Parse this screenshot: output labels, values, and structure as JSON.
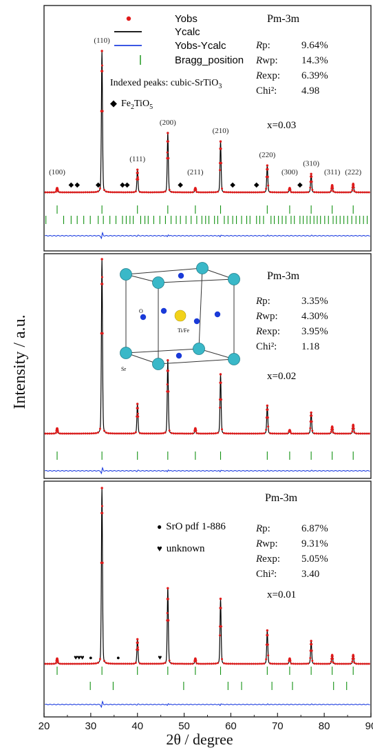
{
  "figure": {
    "ylabel": "Intensity / a.u.",
    "xlabel": "2θ / degree",
    "x_ticks": [
      "20",
      "30",
      "40",
      "50",
      "60",
      "70",
      "80",
      "90"
    ]
  },
  "chart_data": [
    {
      "type": "line",
      "panel": "top",
      "xlim": [
        20,
        90
      ],
      "x_ticks": [
        20,
        30,
        40,
        50,
        60,
        70,
        80,
        90
      ],
      "y_ticks_shown": false,
      "grid": false,
      "legend_position": "top-left",
      "series": [
        {
          "name": "Yobs",
          "style": "red dots",
          "color": "#e01a1a"
        },
        {
          "name": "Ycalc",
          "style": "black line",
          "color": "#000000"
        },
        {
          "name": "Yobs-Ycalc",
          "style": "blue line",
          "color": "#1f3fe0"
        },
        {
          "name": "Bragg_position",
          "style": "green ticks",
          "color": "#109010"
        }
      ],
      "peaks": [
        {
          "x": 22.8,
          "h": 0.03,
          "label": "(100)"
        },
        {
          "x": 32.4,
          "h": 1.0,
          "label": "(110)"
        },
        {
          "x": 40.0,
          "h": 0.16,
          "label": "(111)"
        },
        {
          "x": 46.5,
          "h": 0.42,
          "label": "(200)"
        },
        {
          "x": 52.4,
          "h": 0.03,
          "label": "(211)"
        },
        {
          "x": 57.8,
          "h": 0.36,
          "label": "(210)"
        },
        {
          "x": 67.8,
          "h": 0.19,
          "label": "(220)"
        },
        {
          "x": 72.6,
          "h": 0.03,
          "label": "(300)"
        },
        {
          "x": 77.2,
          "h": 0.13,
          "label": "(310)"
        },
        {
          "x": 81.7,
          "h": 0.05,
          "label": "(311)"
        },
        {
          "x": 86.2,
          "h": 0.06,
          "label": "(222)"
        }
      ],
      "impurity_markers": [
        25.8,
        27.1,
        31.6,
        36.8,
        37.8,
        49.2,
        60.4,
        65.5,
        74.8
      ],
      "impurity_symbol": "◆",
      "bragg_positions_row1": [
        22.8,
        32.4,
        40.0,
        46.5,
        52.4,
        57.8,
        67.8,
        72.6,
        77.2,
        81.7,
        86.2
      ],
      "bragg_positions_row2": [
        20.4,
        24.2,
        25.8,
        27.1,
        28.5,
        29.9,
        31.6,
        32.7,
        34.1,
        35.4,
        36.8,
        37.6,
        38.4,
        39.1,
        40.7,
        41.6,
        42.3,
        43.5,
        44.8,
        46.0,
        47.2,
        48.3,
        49.2,
        50.4,
        51.5,
        52.7,
        53.8,
        54.6,
        55.3,
        56.5,
        57.2,
        58.6,
        59.4,
        60.4,
        61.2,
        62.3,
        63.4,
        64.1,
        65.5,
        66.2,
        67.0,
        68.6,
        69.3,
        70.2,
        71.0,
        71.8,
        72.9,
        73.6,
        74.8,
        75.5,
        76.3,
        77.0,
        77.8,
        78.5,
        79.2,
        80.1,
        80.9,
        81.9,
        82.6,
        83.4,
        84.2,
        85.0,
        85.9,
        86.8,
        87.6,
        88.4,
        89.2
      ],
      "annotations": {
        "space_group": "Pm-3m",
        "indexed_note": "Indexed peaks: cubic-SrTiO",
        "indexed_note_sub": "3",
        "impurity_label": "Fe",
        "impurity_label_sub1": "2",
        "impurity_label_mid": "TiO",
        "impurity_label_sub2": "5",
        "composition": "x=0.03",
        "fit_stats": [
          {
            "name": "R",
            "suffix": "p:",
            "value": "9.64%"
          },
          {
            "name": "R",
            "suffix": "wp:",
            "value": "14.3%"
          },
          {
            "name": "R",
            "suffix": "exp:",
            "value": "6.39%"
          },
          {
            "name": "Chi",
            "suffix": "²:",
            "value": "4.98"
          }
        ]
      }
    },
    {
      "type": "line",
      "panel": "middle",
      "xlim": [
        20,
        90
      ],
      "grid": false,
      "peaks": [
        {
          "x": 22.8,
          "h": 0.03
        },
        {
          "x": 32.4,
          "h": 1.0
        },
        {
          "x": 40.0,
          "h": 0.17
        },
        {
          "x": 46.5,
          "h": 0.42
        },
        {
          "x": 52.4,
          "h": 0.03
        },
        {
          "x": 57.8,
          "h": 0.34
        },
        {
          "x": 67.8,
          "h": 0.16
        },
        {
          "x": 72.6,
          "h": 0.02
        },
        {
          "x": 77.2,
          "h": 0.12
        },
        {
          "x": 81.7,
          "h": 0.04
        },
        {
          "x": 86.2,
          "h": 0.05
        }
      ],
      "bragg_positions_row1": [
        22.8,
        32.4,
        40.0,
        46.5,
        52.4,
        57.8,
        67.8,
        72.6,
        77.2,
        81.7,
        86.2
      ],
      "inset": {
        "type": "crystal-structure",
        "labels": {
          "o": "O",
          "b_site": "Ti/Fe",
          "a_site": "Sr"
        }
      },
      "annotations": {
        "space_group": "Pm-3m",
        "composition": "x=0.02",
        "fit_stats": [
          {
            "name": "R",
            "suffix": "p:",
            "value": "3.35%"
          },
          {
            "name": "R",
            "suffix": "wp:",
            "value": "4.30%"
          },
          {
            "name": "R",
            "suffix": "exp:",
            "value": "3.95%"
          },
          {
            "name": "Chi",
            "suffix": "²:",
            "value": "1.18"
          }
        ]
      }
    },
    {
      "type": "line",
      "panel": "bottom",
      "xlim": [
        20,
        90
      ],
      "grid": false,
      "peaks": [
        {
          "x": 22.8,
          "h": 0.03
        },
        {
          "x": 32.4,
          "h": 1.0
        },
        {
          "x": 40.0,
          "h": 0.14
        },
        {
          "x": 46.5,
          "h": 0.43
        },
        {
          "x": 52.4,
          "h": 0.03
        },
        {
          "x": 57.8,
          "h": 0.37
        },
        {
          "x": 67.8,
          "h": 0.19
        },
        {
          "x": 72.6,
          "h": 0.03
        },
        {
          "x": 77.2,
          "h": 0.13
        },
        {
          "x": 81.7,
          "h": 0.05
        },
        {
          "x": 86.2,
          "h": 0.05
        }
      ],
      "impurity_markers_srO": [
        30.0,
        35.9
      ],
      "impurity_markers_unknown": [
        26.8,
        27.5,
        28.2,
        44.8
      ],
      "bragg_positions_row1": [
        22.8,
        32.4,
        40.0,
        46.5,
        52.4,
        57.8,
        67.8,
        72.6,
        77.2,
        81.7,
        86.2
      ],
      "bragg_positions_row2": [
        29.9,
        34.8,
        49.9,
        59.4,
        62.3,
        68.8,
        73.2,
        82.0,
        84.8
      ],
      "annotations": {
        "space_group": "Pm-3m",
        "legend_sro_symbol": "●",
        "legend_sro": "SrO pdf 1-886",
        "legend_unknown_symbol": "♥",
        "legend_unknown": "unknown",
        "composition": "x=0.01",
        "fit_stats": [
          {
            "name": "R",
            "suffix": "p:",
            "value": "6.87%"
          },
          {
            "name": "R",
            "suffix": "wp:",
            "value": "9.31%"
          },
          {
            "name": "R",
            "suffix": "exp:",
            "value": "5.05%"
          },
          {
            "name": "Chi",
            "suffix": "²:",
            "value": "3.40"
          }
        ]
      }
    }
  ],
  "colors": {
    "obs": "#e01a1a",
    "calc": "#000000",
    "diff": "#1f3fe0",
    "bragg": "#109010",
    "atom_sr": "#3ab8c8",
    "atom_o": "#1a3ad8",
    "atom_b": "#f2d21a"
  }
}
